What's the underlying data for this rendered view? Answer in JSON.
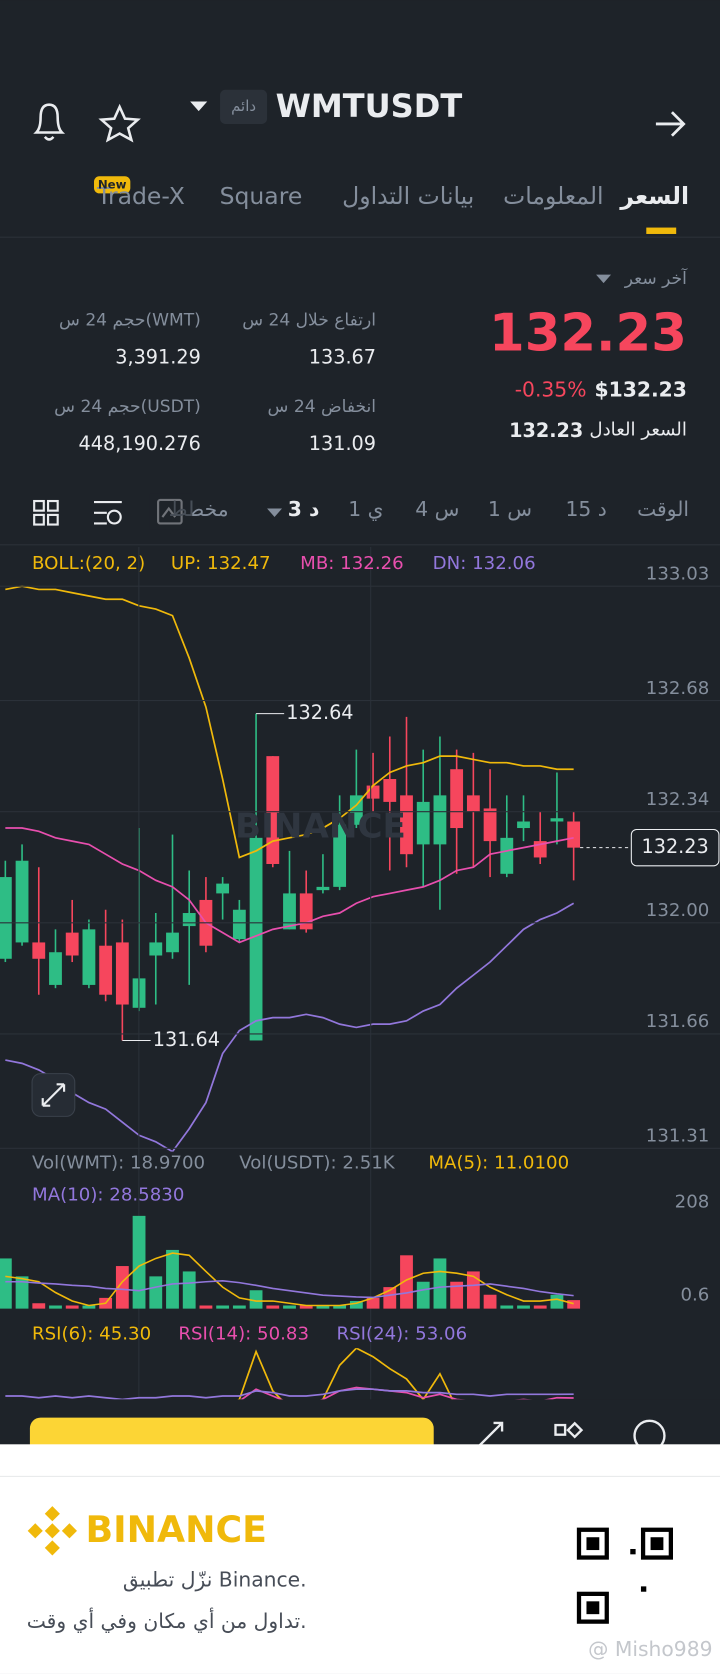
{
  "header": {
    "symbol": "WMTUSDT",
    "badge": "دائم"
  },
  "tabs": [
    "السعر",
    "المعلومات",
    "بيانات التداول",
    "Square",
    "Trade-X"
  ],
  "new_badge": "New",
  "price_panel": {
    "last_price_label": "آخر سعر",
    "last_price": "132.23",
    "change": "-0.35%",
    "usd_price": "$132.23",
    "fair_price_label": "السعر العادل",
    "fair_price": "132.23"
  },
  "stats": [
    {
      "label": "ارتفاع خلال 24 س",
      "value": "133.67"
    },
    {
      "label": "حجم 24 س(WMT)",
      "value": "3,391.29"
    },
    {
      "label": "انخفاض 24 س",
      "value": "131.09"
    },
    {
      "label": "حجم 24 س(USDT)",
      "value": "448,190.276"
    }
  ],
  "timeframes": [
    "الوقت",
    "15 د",
    "1 س",
    "4 س",
    "1 ي",
    "3 د",
    "مخطط"
  ],
  "chart_data": {
    "type": "candlestick",
    "legend": {
      "boll": "BOLL:(20, 2)",
      "up": "UP: 132.47",
      "mb": "MB: 132.26",
      "dn": "DN: 132.06"
    },
    "candles": {
      "open": [
        131.89,
        131.94,
        131.94,
        131.81,
        131.97,
        131.81,
        131.93,
        131.94,
        131.74,
        131.9,
        131.91,
        131.99,
        132.07,
        132.09,
        131.95,
        131.64,
        132.51,
        131.98,
        132.09,
        132.1,
        132.11,
        132.3,
        132.42,
        132.44,
        132.39,
        132.24,
        132.24,
        132.47,
        132.39,
        132.35,
        132.15,
        132.29,
        132.25,
        132.31,
        132.31
      ],
      "high": [
        132.19,
        132.24,
        132.17,
        131.98,
        132.07,
        132.01,
        132.04,
        132.01,
        132.29,
        132.03,
        132.27,
        132.16,
        132.14,
        132.14,
        132.07,
        132.64,
        132.51,
        132.22,
        132.16,
        132.21,
        132.39,
        132.53,
        132.52,
        132.57,
        132.63,
        132.53,
        132.57,
        132.53,
        132.52,
        132.47,
        132.39,
        132.39,
        132.34,
        132.46,
        132.34
      ],
      "low": [
        131.88,
        131.93,
        131.78,
        131.8,
        131.88,
        131.8,
        131.76,
        131.64,
        131.73,
        131.75,
        131.89,
        131.81,
        131.91,
        132.01,
        131.94,
        131.65,
        132.17,
        131.98,
        131.97,
        132.09,
        132.1,
        132.29,
        132.34,
        132.16,
        132.17,
        132.11,
        132.04,
        132.15,
        132.17,
        132.14,
        132.14,
        132.25,
        132.18,
        132.24,
        132.13
      ],
      "close": [
        132.14,
        132.19,
        131.89,
        131.91,
        131.9,
        131.98,
        131.78,
        131.75,
        131.83,
        131.94,
        131.97,
        132.03,
        131.93,
        132.12,
        132.04,
        132.26,
        132.18,
        132.09,
        131.98,
        132.11,
        132.3,
        132.39,
        132.38,
        132.37,
        132.21,
        132.37,
        132.39,
        132.29,
        132.34,
        132.25,
        132.26,
        132.31,
        132.2,
        132.32,
        132.23
      ]
    },
    "bollinger": [
      {
        "name": "UP",
        "color": "#f0b90b",
        "values": [
          133.02,
          133.03,
          133.02,
          133.02,
          133.01,
          133.0,
          132.99,
          132.99,
          132.97,
          132.96,
          132.94,
          132.81,
          132.66,
          132.44,
          132.2,
          132.22,
          132.25,
          132.26,
          132.27,
          132.29,
          132.32,
          132.36,
          132.42,
          132.46,
          132.48,
          132.49,
          132.51,
          132.51,
          132.5,
          132.49,
          132.49,
          132.48,
          132.48,
          132.47,
          132.47
        ]
      },
      {
        "name": "MB",
        "color": "#e84fae",
        "values": [
          132.29,
          132.29,
          132.28,
          132.26,
          132.25,
          132.24,
          132.21,
          132.18,
          132.16,
          132.13,
          132.11,
          132.07,
          132.0,
          131.97,
          131.94,
          131.96,
          131.98,
          131.99,
          132.0,
          132.02,
          132.03,
          132.06,
          132.08,
          132.09,
          132.1,
          132.11,
          132.13,
          132.16,
          132.17,
          132.21,
          132.22,
          132.23,
          132.24,
          132.25,
          132.26
        ]
      },
      {
        "name": "DN",
        "color": "#9277dc",
        "values": [
          131.58,
          131.57,
          131.55,
          131.52,
          131.48,
          131.45,
          131.43,
          131.39,
          131.35,
          131.33,
          131.3,
          131.37,
          131.45,
          131.6,
          131.67,
          131.7,
          131.71,
          131.71,
          131.72,
          131.71,
          131.69,
          131.68,
          131.69,
          131.69,
          131.7,
          131.73,
          131.75,
          131.8,
          131.84,
          131.88,
          131.93,
          131.98,
          132.01,
          132.03,
          132.06
        ]
      }
    ],
    "ylim": [
      131.3,
      133.15
    ],
    "yticks": [
      133.03,
      132.68,
      132.34,
      {
        "value": 132,
        "label": "132.00"
      },
      131.66,
      131.31
    ],
    "last_price": 132.23,
    "annotations": [
      {
        "value": 132.64
      },
      {
        "value": 131.64
      }
    ],
    "watermark": "BINANCE",
    "volume": {
      "legend": [
        "Vol(WMT): 18.9700",
        "Vol(USDT): 2.51K",
        "MA(5): 11.0100",
        "MA(10): 28.5830"
      ],
      "values": [
        112,
        72,
        12,
        7,
        7,
        7,
        24,
        95,
        207,
        72,
        131,
        83,
        7,
        7,
        7,
        41,
        7,
        7,
        7,
        7,
        7,
        17,
        24,
        48,
        119,
        60,
        112,
        60,
        83,
        31,
        7,
        7,
        7,
        31,
        19
      ],
      "ma5": [
        72,
        67,
        60,
        36,
        17,
        7,
        12,
        60,
        95,
        112,
        124,
        119,
        83,
        48,
        24,
        17,
        17,
        12,
        7,
        7,
        7,
        12,
        24,
        41,
        64,
        79,
        83,
        79,
        72,
        48,
        31,
        17,
        17,
        21,
        11
      ],
      "ma10": [
        60,
        60,
        57,
        55,
        52,
        50,
        45,
        43,
        40,
        48,
        55,
        57,
        60,
        62,
        58,
        52,
        45,
        40,
        35,
        30,
        28,
        26,
        25,
        30,
        35,
        42,
        48,
        50,
        52,
        55,
        50,
        45,
        38,
        33,
        29
      ],
      "ylim": [
        0,
        219.3
      ],
      "yticks": [
        208,
        0.6
      ]
    },
    "rsi": {
      "legend": [
        "RSI(6): 45.30",
        "RSI(14): 50.83",
        "RSI(24): 53.06"
      ],
      "series": [
        {
          "color": "#f0b90b",
          "values": [
            45,
            48,
            40,
            44,
            42,
            46,
            40,
            35,
            42,
            44,
            46,
            48,
            40,
            45,
            50,
            78,
            55,
            45,
            42,
            50,
            70,
            80,
            75,
            68,
            62,
            50,
            65,
            45,
            42,
            40,
            44,
            46,
            42,
            48,
            45.3
          ]
        },
        {
          "color": "#e84fae",
          "values": [
            48,
            49,
            47,
            48,
            47,
            48,
            46,
            44,
            46,
            47,
            48,
            49,
            47,
            48,
            49,
            56,
            52,
            48,
            47,
            50,
            55,
            57,
            56,
            55,
            54,
            51,
            53,
            50,
            49,
            48,
            49,
            50,
            49,
            51,
            50.83
          ]
        },
        {
          "color": "#9277dc",
          "values": [
            52,
            52,
            51,
            52,
            51,
            52,
            51,
            50,
            51,
            51,
            52,
            52,
            51,
            52,
            52,
            55,
            54,
            52,
            52,
            53,
            55,
            56,
            56,
            55,
            55,
            54,
            54,
            53,
            53,
            52,
            53,
            53,
            53,
            53,
            53.06
          ]
        }
      ],
      "ylim": [
        0,
        100
      ]
    }
  },
  "footer": {
    "brand": "BINANCE",
    "line1": "نزّل تطبيق Binance.",
    "line2": "تداول من أي مكان وفي أي وقت.",
    "credit": "@ Misho989"
  }
}
